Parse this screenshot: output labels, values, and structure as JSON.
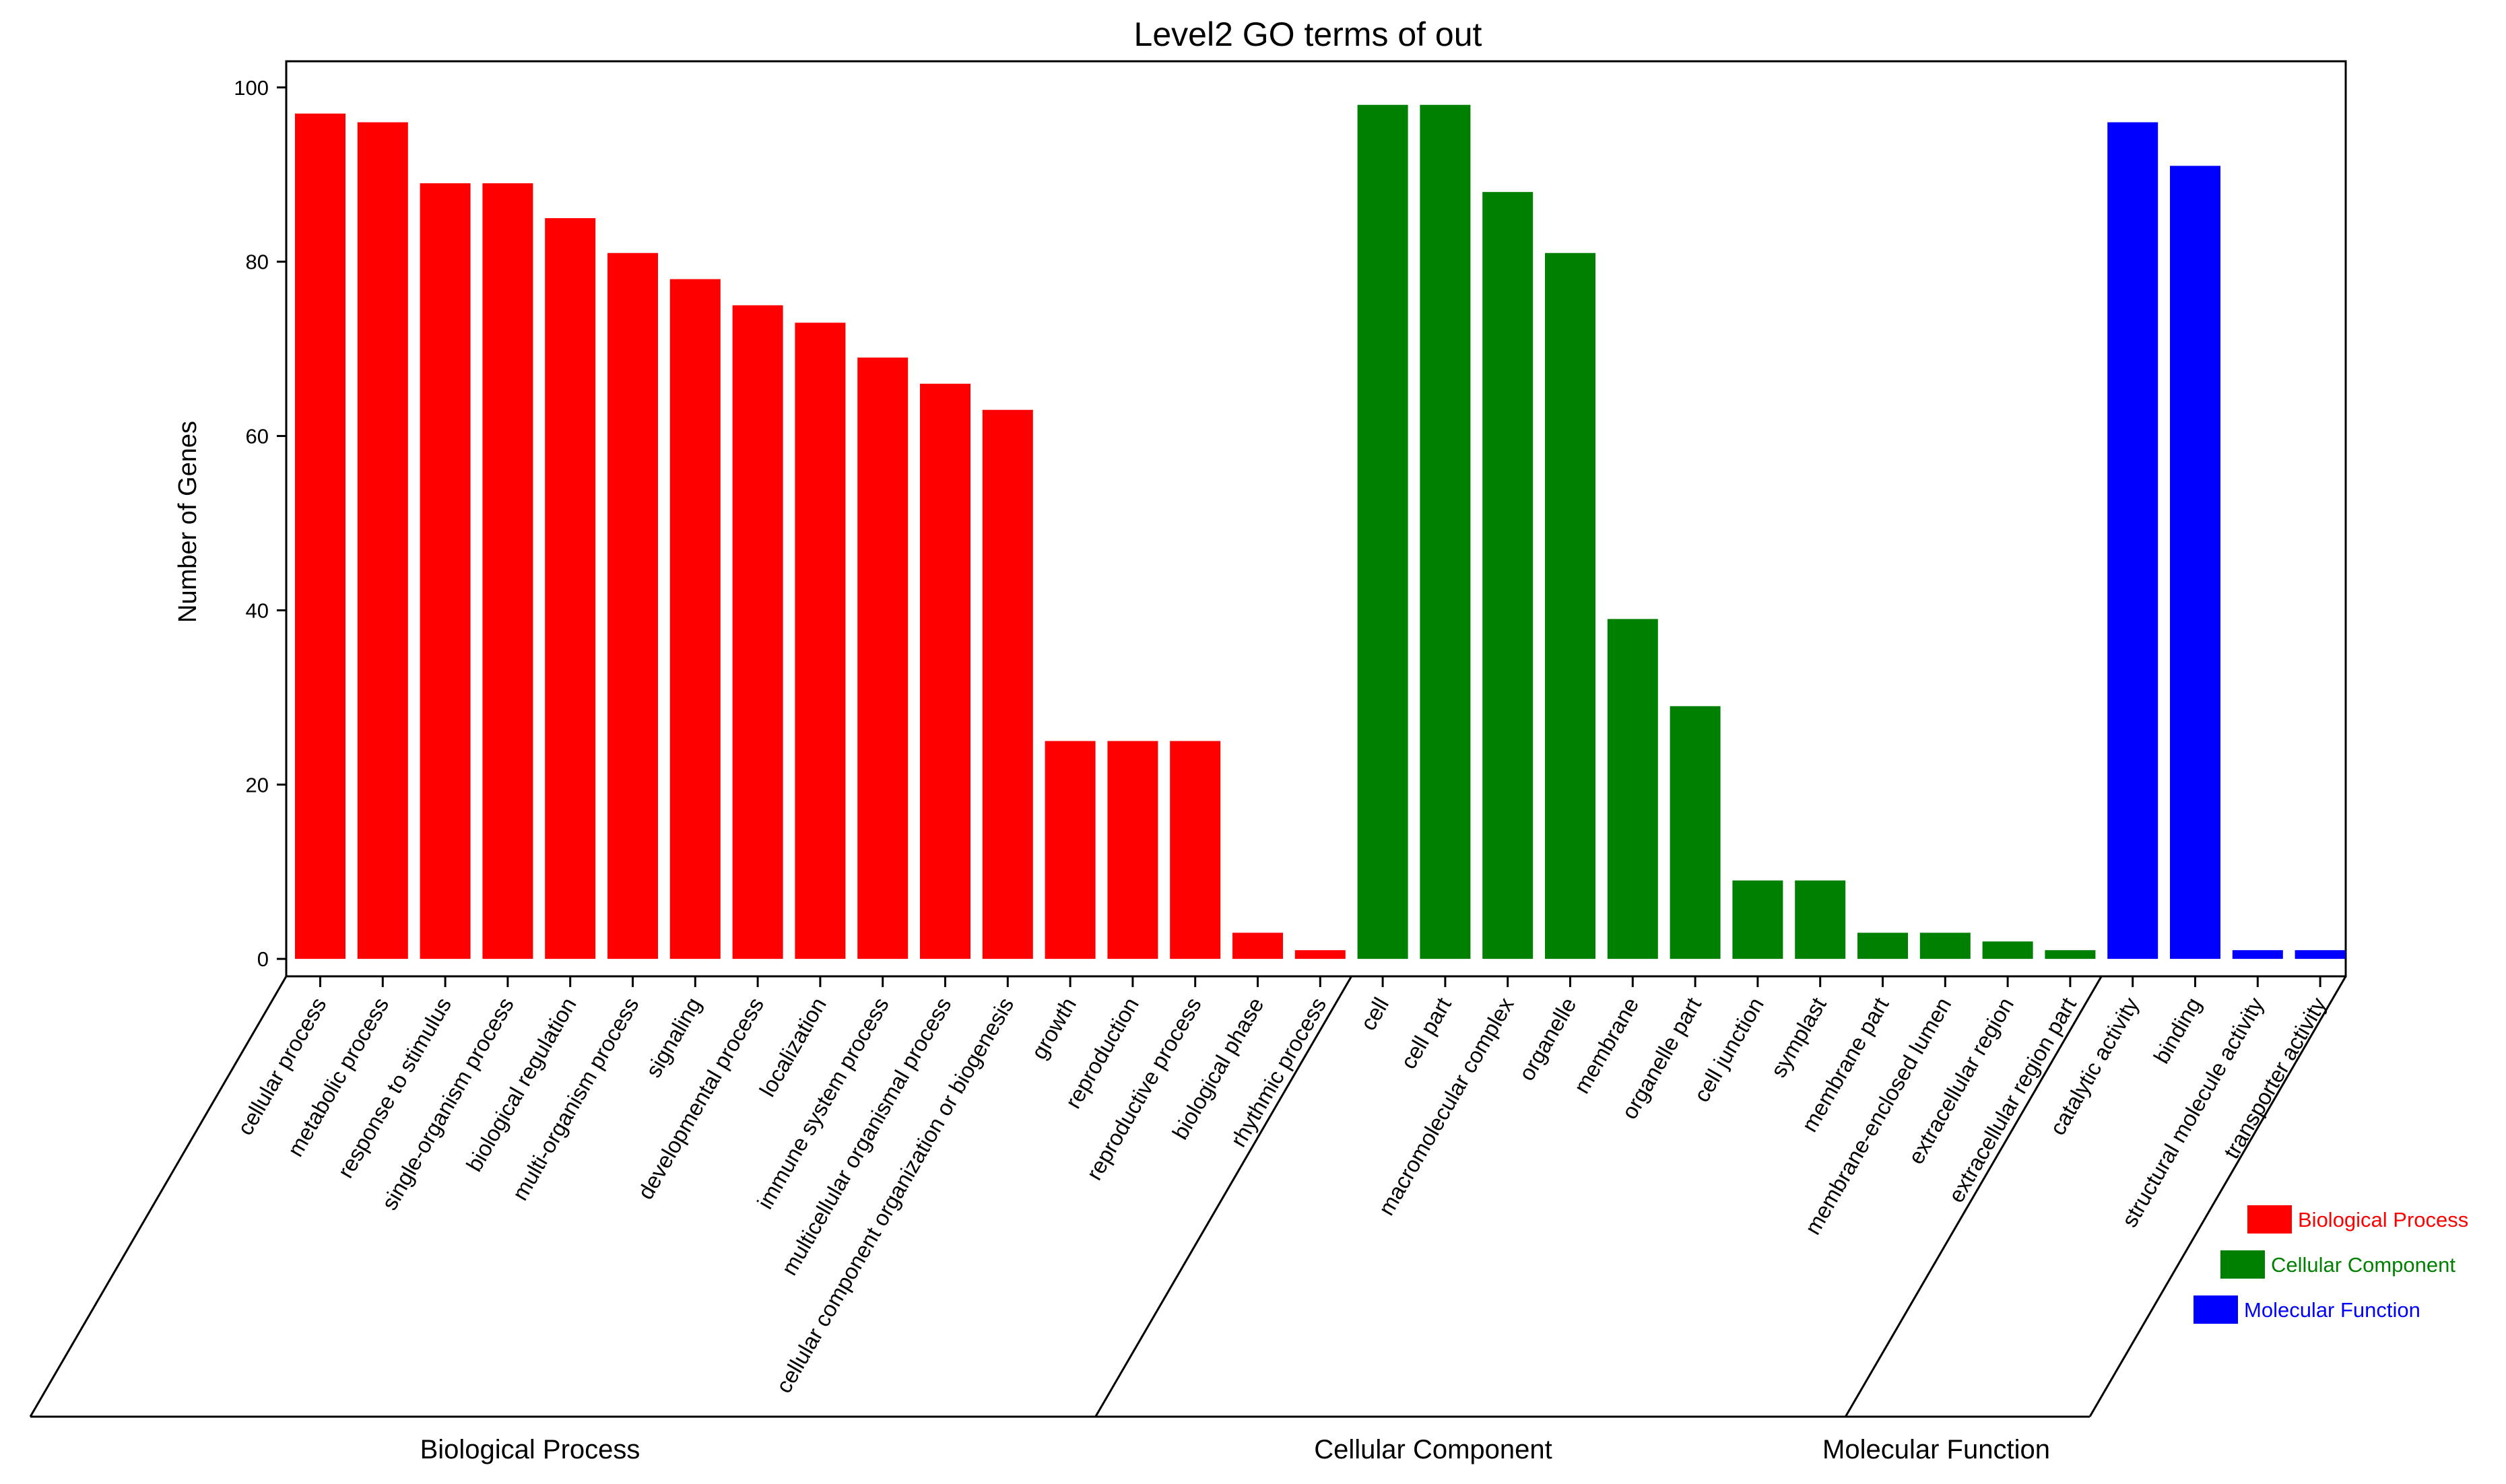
{
  "chart_data": {
    "type": "bar",
    "title": "Level2 GO terms of out",
    "xlabel": "",
    "ylabel": "Number of Genes",
    "ylim": [
      -2,
      103
    ],
    "yticks": [
      0,
      20,
      40,
      60,
      80,
      100
    ],
    "groups": [
      {
        "name": "Biological Process",
        "color": "#ff0000",
        "categories": [
          "cellular process",
          "metabolic process",
          "response to stimulus",
          "single-organism process",
          "biological regulation",
          "multi-organism process",
          "signaling",
          "developmental process",
          "localization",
          "immune system process",
          "multicellular organismal process",
          "cellular component organization or biogenesis",
          "growth",
          "reproduction",
          "reproductive process",
          "biological phase",
          "rhythmic process"
        ],
        "values": [
          97,
          96,
          89,
          89,
          85,
          81,
          78,
          75,
          73,
          69,
          66,
          63,
          25,
          25,
          25,
          3,
          1
        ]
      },
      {
        "name": "Cellular Component",
        "color": "#008000",
        "categories": [
          "cell",
          "cell part",
          "macromolecular complex",
          "organelle",
          "membrane",
          "organelle part",
          "cell junction",
          "symplast",
          "membrane part",
          "membrane-enclosed lumen",
          "extracellular region",
          "extracellular region part"
        ],
        "values": [
          98,
          98,
          88,
          81,
          39,
          29,
          9,
          9,
          3,
          3,
          2,
          1
        ]
      },
      {
        "name": "Molecular Function",
        "color": "#0000ff",
        "categories": [
          "catalytic activity",
          "binding",
          "structural molecule activity",
          "transporter activity"
        ],
        "values": [
          96,
          91,
          1,
          1
        ]
      }
    ],
    "legend": {
      "position": "bottom-right",
      "entries": [
        "Biological Process",
        "Cellular Component",
        "Molecular Function"
      ]
    }
  }
}
